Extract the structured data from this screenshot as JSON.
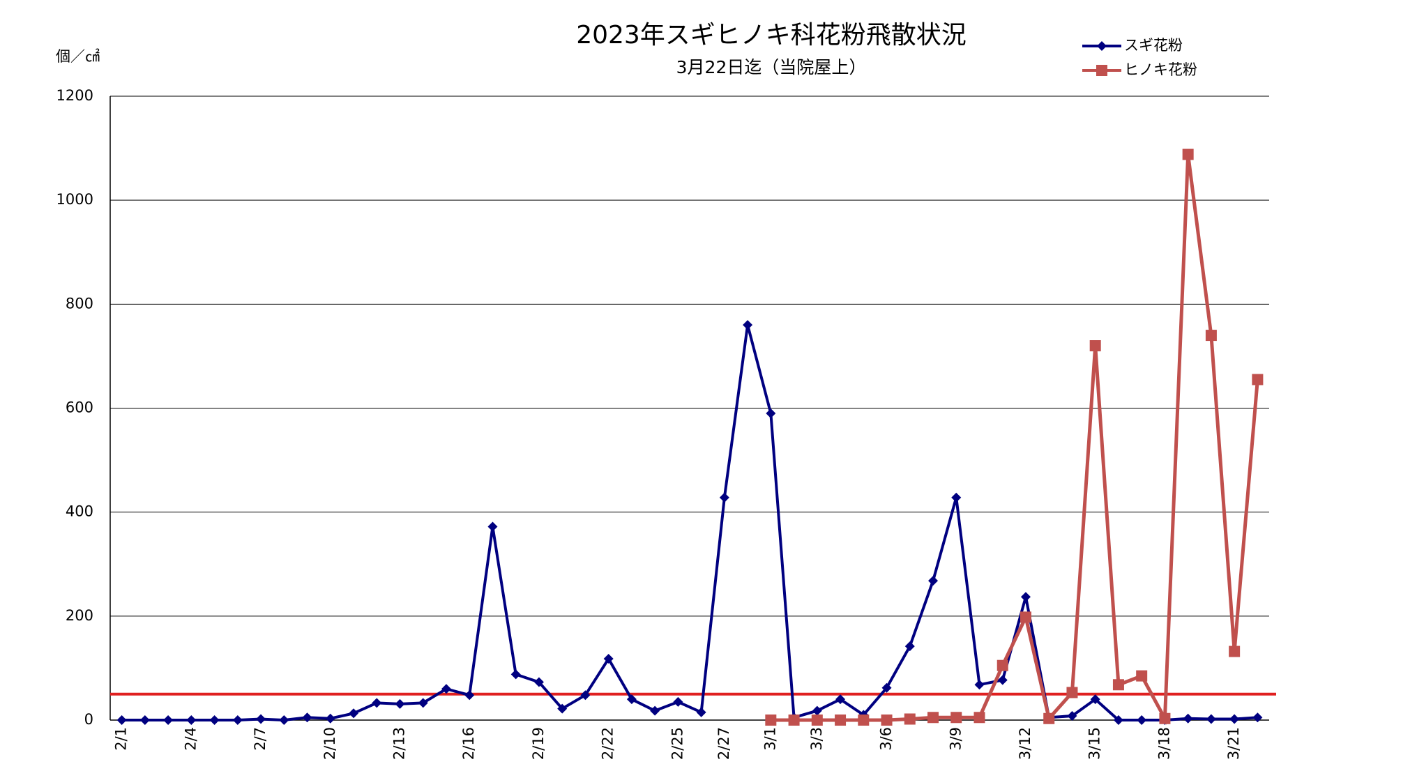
{
  "chart_data": {
    "type": "line",
    "title": "2023年スギヒノキ科花粉飛散状況",
    "subtitle": "3月22日迄（当院屋上）",
    "y_label": "個／㎠",
    "categories": [
      "2/1",
      null,
      null,
      "2/4",
      null,
      null,
      "2/7",
      null,
      null,
      "2/10",
      null,
      null,
      "2/13",
      null,
      null,
      "2/16",
      null,
      null,
      "2/19",
      null,
      null,
      "2/22",
      null,
      null,
      "2/25",
      null,
      "2/27",
      null,
      "3/1",
      null,
      "3/3",
      null,
      null,
      "3/6",
      null,
      null,
      "3/9",
      null,
      null,
      "3/12",
      null,
      null,
      "3/15",
      null,
      null,
      "3/18",
      null,
      null,
      "3/21",
      null
    ],
    "series": [
      {
        "name": "スギ花粉",
        "color": "#000080",
        "marker": "diamond",
        "values": [
          0,
          0,
          0,
          0,
          0,
          0,
          2,
          0,
          5,
          3,
          13,
          33,
          31,
          33,
          60,
          48,
          372,
          88,
          73,
          22,
          48,
          118,
          40,
          18,
          35,
          15,
          428,
          760,
          590,
          5,
          18,
          40,
          10,
          62,
          142,
          268,
          428,
          68,
          77,
          237,
          5,
          8,
          40,
          0,
          0,
          0,
          3,
          2,
          2,
          5
        ]
      },
      {
        "name": "ヒノキ花粉",
        "color": "#c0504d",
        "marker": "square",
        "values": [
          null,
          null,
          null,
          null,
          null,
          null,
          null,
          null,
          null,
          null,
          null,
          null,
          null,
          null,
          null,
          null,
          null,
          null,
          null,
          null,
          null,
          null,
          null,
          null,
          null,
          null,
          null,
          null,
          0,
          0,
          0,
          0,
          0,
          0,
          2,
          5,
          5,
          5,
          105,
          198,
          3,
          53,
          720,
          68,
          85,
          3,
          1088,
          740,
          132,
          655
        ]
      }
    ],
    "reference_line": {
      "value": 50,
      "color": "#e02020"
    },
    "ylim": [
      0,
      1200
    ],
    "yticks": [
      0,
      200,
      400,
      600,
      800,
      1000,
      1200
    ],
    "grid": true
  }
}
